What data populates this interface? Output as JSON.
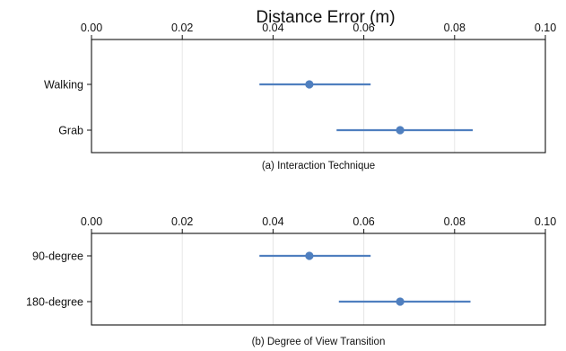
{
  "title": "Distance Error (m)",
  "colors": {
    "marker": "#4f7fbf",
    "errorbar": "#4f7fbf",
    "grid": "#e6e6e6",
    "frame": "#111111"
  },
  "chart_data": [
    {
      "type": "scatter",
      "orientation": "horizontal",
      "caption": "(a) Interaction Technique",
      "xlim": [
        0.0,
        0.1
      ],
      "xticks": [
        "0.00",
        "0.02",
        "0.04",
        "0.06",
        "0.08",
        "0.10"
      ],
      "xtick_values": [
        0.0,
        0.02,
        0.04,
        0.06,
        0.08,
        0.1
      ],
      "x_axis_position": "top",
      "grid": "vertical",
      "categories": [
        "Walking",
        "Grab"
      ],
      "values": [
        0.048,
        0.068
      ],
      "ci_low": [
        0.037,
        0.054
      ],
      "ci_high": [
        0.0615,
        0.084
      ]
    },
    {
      "type": "scatter",
      "orientation": "horizontal",
      "caption": "(b) Degree of View Transition",
      "xlim": [
        0.0,
        0.1
      ],
      "xticks": [
        "0.00",
        "0.02",
        "0.04",
        "0.06",
        "0.08",
        "0.10"
      ],
      "xtick_values": [
        0.0,
        0.02,
        0.04,
        0.06,
        0.08,
        0.1
      ],
      "x_axis_position": "top",
      "grid": "vertical",
      "categories": [
        "90-degree",
        "180-degree"
      ],
      "values": [
        0.048,
        0.068
      ],
      "ci_low": [
        0.037,
        0.0545
      ],
      "ci_high": [
        0.0615,
        0.0835
      ]
    }
  ]
}
